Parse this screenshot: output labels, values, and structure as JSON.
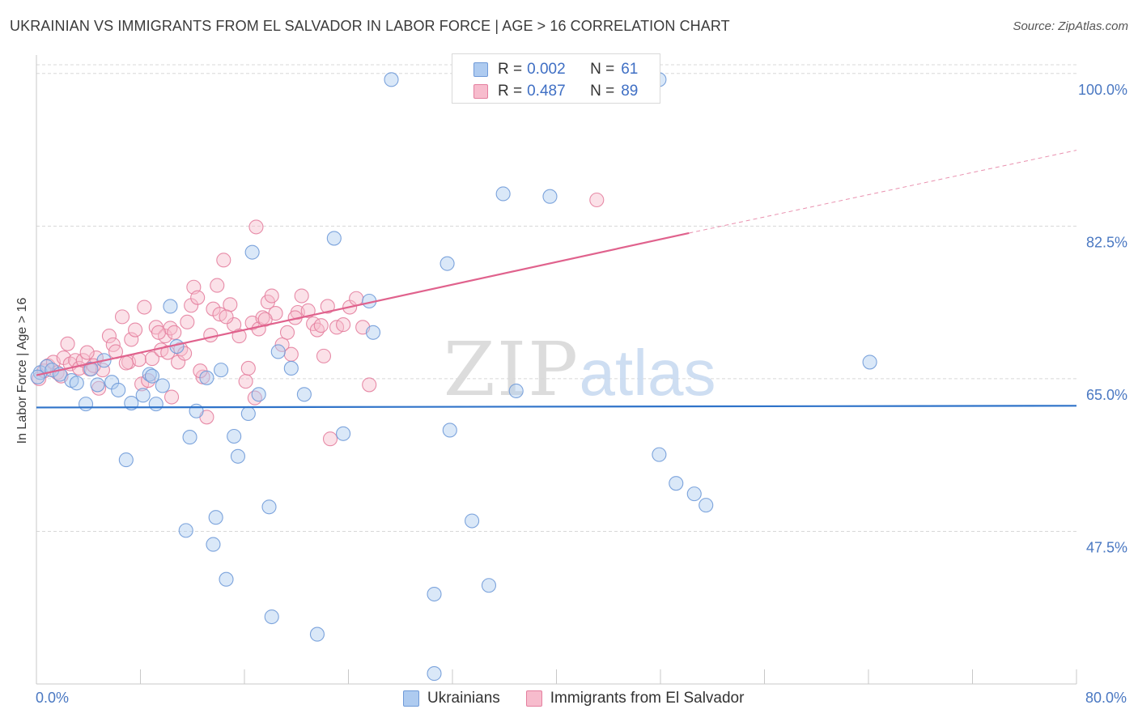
{
  "header": {
    "title": "UKRAINIAN VS IMMIGRANTS FROM EL SALVADOR IN LABOR FORCE | AGE > 16 CORRELATION CHART",
    "source": "Source: ZipAtlas.com"
  },
  "watermark": {
    "zip": "ZIP",
    "atlas": "atlas"
  },
  "colors": {
    "blue_fill": "#aecbf0",
    "blue_stroke": "#6f9ad8",
    "blue_line": "#2f73c9",
    "pink_fill": "#f7bccd",
    "pink_stroke": "#e47f9f",
    "pink_line": "#e0628d",
    "axis_label": "#4a78c2",
    "grid": "#d8d8d8"
  },
  "legend_top": {
    "rows": [
      {
        "r_label": "R =",
        "r_value": "0.002",
        "n_label": "N =",
        "n_value": "61"
      },
      {
        "r_label": "R =",
        "r_value": "0.487",
        "n_label": "N =",
        "n_value": "89"
      }
    ]
  },
  "legend_bottom": {
    "items": [
      "Ukrainians",
      "Immigrants from El Salvador"
    ]
  },
  "axes": {
    "x_min_label": "0.0%",
    "x_max_label": "80.0%",
    "ylabel": "In Labor Force | Age > 16",
    "y_ticks": [
      "100.0%",
      "82.5%",
      "65.0%",
      "47.5%"
    ]
  },
  "chart_data": {
    "type": "scatter",
    "title": "UKRAINIAN VS IMMIGRANTS FROM EL SALVADOR IN LABOR FORCE | AGE > 16 CORRELATION CHART",
    "xlabel": "",
    "ylabel": "In Labor Force | Age > 16",
    "xlim": [
      0,
      80
    ],
    "ylim": [
      30,
      101
    ],
    "y_ticks": [
      47.5,
      65.0,
      82.5,
      100.0
    ],
    "grid": true,
    "series": [
      {
        "name": "Ukrainians",
        "r": 0.002,
        "n": 61,
        "trend": {
          "x0": 0,
          "y0": 61.7,
          "x1": 80,
          "y1": 61.9
        },
        "points": [
          [
            0.3,
            65.7
          ],
          [
            0.8,
            66.4
          ],
          [
            1.2,
            66.0
          ],
          [
            1.8,
            65.5
          ],
          [
            2.7,
            64.8
          ],
          [
            3.1,
            64.5
          ],
          [
            3.8,
            62.1
          ],
          [
            4.2,
            66.1
          ],
          [
            4.7,
            64.3
          ],
          [
            5.2,
            67.1
          ],
          [
            5.8,
            64.6
          ],
          [
            6.3,
            63.7
          ],
          [
            6.9,
            55.7
          ],
          [
            7.3,
            62.2
          ],
          [
            8.2,
            63.1
          ],
          [
            8.7,
            65.5
          ],
          [
            8.9,
            65.3
          ],
          [
            9.2,
            62.1
          ],
          [
            9.7,
            64.2
          ],
          [
            10.3,
            73.3
          ],
          [
            10.8,
            68.7
          ],
          [
            11.5,
            47.6
          ],
          [
            11.8,
            58.3
          ],
          [
            12.3,
            61.3
          ],
          [
            13.1,
            65.1
          ],
          [
            13.6,
            46.0
          ],
          [
            13.8,
            49.1
          ],
          [
            14.2,
            66.0
          ],
          [
            14.6,
            42.0
          ],
          [
            15.2,
            58.4
          ],
          [
            15.5,
            56.1
          ],
          [
            16.3,
            61.0
          ],
          [
            16.6,
            79.5
          ],
          [
            17.1,
            63.2
          ],
          [
            17.9,
            50.3
          ],
          [
            18.1,
            37.7
          ],
          [
            18.6,
            68.1
          ],
          [
            19.6,
            66.2
          ],
          [
            20.6,
            63.2
          ],
          [
            21.6,
            35.7
          ],
          [
            22.9,
            81.1
          ],
          [
            23.6,
            58.7
          ],
          [
            25.6,
            73.9
          ],
          [
            25.9,
            70.3
          ],
          [
            27.3,
            99.3
          ],
          [
            30.6,
            40.3
          ],
          [
            30.6,
            31.2
          ],
          [
            31.6,
            78.2
          ],
          [
            31.8,
            59.1
          ],
          [
            33.5,
            48.7
          ],
          [
            34.8,
            41.3
          ],
          [
            35.9,
            86.2
          ],
          [
            36.9,
            63.6
          ],
          [
            39.5,
            85.9
          ],
          [
            47.9,
            99.3
          ],
          [
            47.9,
            56.3
          ],
          [
            49.2,
            53.0
          ],
          [
            50.6,
            51.8
          ],
          [
            51.5,
            50.5
          ],
          [
            64.1,
            66.9
          ],
          [
            0.1,
            65.2
          ]
        ]
      },
      {
        "name": "Immigrants from El Salvador",
        "r": 0.487,
        "n": 89,
        "trend": {
          "x0": 0,
          "y0": 65.4,
          "x1": 50.2,
          "y1": 81.7
        },
        "trend_dashed": {
          "x0": 50.2,
          "y0": 81.7,
          "x1": 80,
          "y1": 91.2
        },
        "points": [
          [
            0.2,
            65.0
          ],
          [
            0.6,
            65.9
          ],
          [
            0.9,
            66.5
          ],
          [
            1.3,
            66.9
          ],
          [
            1.6,
            65.7
          ],
          [
            2.1,
            67.4
          ],
          [
            2.6,
            66.7
          ],
          [
            3.0,
            67.1
          ],
          [
            3.3,
            66.2
          ],
          [
            3.6,
            67.1
          ],
          [
            4.1,
            66.1
          ],
          [
            4.6,
            67.4
          ],
          [
            4.8,
            63.9
          ],
          [
            5.1,
            66.0
          ],
          [
            5.6,
            69.9
          ],
          [
            5.9,
            68.9
          ],
          [
            6.1,
            68.1
          ],
          [
            6.6,
            72.1
          ],
          [
            7.1,
            66.9
          ],
          [
            7.3,
            69.5
          ],
          [
            7.6,
            70.6
          ],
          [
            7.9,
            67.2
          ],
          [
            8.1,
            64.4
          ],
          [
            8.3,
            73.2
          ],
          [
            8.9,
            67.3
          ],
          [
            9.2,
            70.9
          ],
          [
            9.6,
            68.3
          ],
          [
            9.9,
            69.9
          ],
          [
            10.1,
            68.0
          ],
          [
            10.3,
            70.8
          ],
          [
            10.6,
            70.3
          ],
          [
            10.9,
            66.9
          ],
          [
            11.1,
            68.4
          ],
          [
            11.6,
            71.5
          ],
          [
            11.9,
            73.4
          ],
          [
            12.1,
            75.5
          ],
          [
            12.4,
            74.3
          ],
          [
            12.8,
            65.2
          ],
          [
            13.1,
            60.6
          ],
          [
            13.4,
            70.0
          ],
          [
            13.6,
            73.0
          ],
          [
            13.9,
            75.7
          ],
          [
            14.1,
            72.4
          ],
          [
            14.4,
            78.6
          ],
          [
            14.9,
            73.5
          ],
          [
            15.2,
            71.2
          ],
          [
            15.6,
            69.9
          ],
          [
            16.1,
            64.7
          ],
          [
            16.3,
            66.2
          ],
          [
            16.6,
            71.4
          ],
          [
            16.8,
            62.8
          ],
          [
            17.1,
            70.7
          ],
          [
            17.4,
            72.0
          ],
          [
            17.8,
            73.8
          ],
          [
            18.1,
            74.5
          ],
          [
            18.4,
            72.5
          ],
          [
            18.9,
            68.9
          ],
          [
            19.3,
            70.3
          ],
          [
            19.6,
            67.8
          ],
          [
            20.1,
            72.6
          ],
          [
            20.4,
            74.5
          ],
          [
            20.9,
            72.8
          ],
          [
            21.3,
            71.3
          ],
          [
            21.6,
            70.6
          ],
          [
            22.1,
            67.6
          ],
          [
            22.6,
            58.1
          ],
          [
            23.1,
            70.9
          ],
          [
            23.6,
            71.2
          ],
          [
            24.1,
            73.2
          ],
          [
            24.6,
            74.2
          ],
          [
            25.1,
            70.9
          ],
          [
            25.6,
            64.3
          ],
          [
            1.9,
            65.3
          ],
          [
            2.4,
            69.0
          ],
          [
            3.9,
            68.0
          ],
          [
            4.4,
            66.5
          ],
          [
            6.9,
            66.8
          ],
          [
            8.6,
            64.8
          ],
          [
            9.4,
            70.3
          ],
          [
            10.4,
            62.9
          ],
          [
            11.4,
            67.9
          ],
          [
            12.6,
            65.9
          ],
          [
            14.6,
            72.1
          ],
          [
            16.9,
            82.4
          ],
          [
            17.6,
            71.8
          ],
          [
            19.9,
            72.0
          ],
          [
            21.9,
            71.1
          ],
          [
            43.1,
            85.5
          ],
          [
            22.4,
            73.3
          ]
        ]
      }
    ]
  }
}
